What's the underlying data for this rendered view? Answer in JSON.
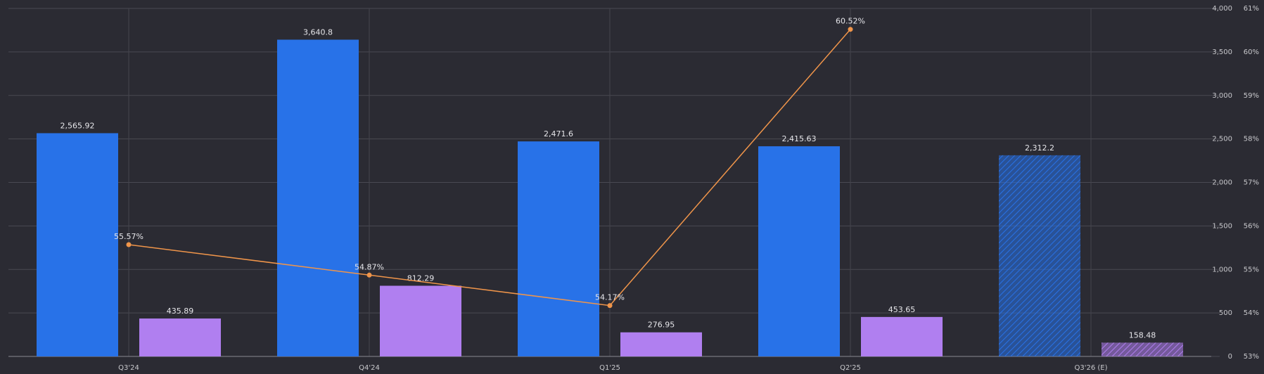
{
  "chart_data": {
    "type": "bar_line",
    "categories": [
      "Q3'24",
      "Q4'24",
      "Q1'25",
      "Q2'25",
      "Q3'26 (E)"
    ],
    "series": [
      {
        "type": "bar",
        "color": "#2872e8",
        "values": [
          2565.92,
          3640.8,
          2471.6,
          2415.63,
          2312.2
        ],
        "value_labels": [
          "2,565.92",
          "3,640.8",
          "2,471.6",
          "2,415.63",
          "2,312.2"
        ],
        "hatched": [
          false,
          false,
          false,
          false,
          true
        ]
      },
      {
        "type": "bar",
        "color": "#b07ff0",
        "values": [
          435.89,
          812.29,
          276.95,
          453.65,
          158.48
        ],
        "hatched": [
          false,
          false,
          false,
          false,
          true
        ]
      },
      {
        "type": "line",
        "axis": "y2",
        "color": "#f0954a",
        "values": [
          55.57,
          54.87,
          54.17,
          60.52,
          null
        ],
        "value_labels": [
          "55.57%",
          "54.87%",
          "54.17%",
          "60.52%",
          null
        ]
      }
    ],
    "ylim": [
      0,
      4000
    ],
    "yticks": [
      0,
      500,
      {
        "value": 1000,
        "label": "1,000"
      },
      {
        "value": 1500,
        "label": "1,500"
      },
      {
        "value": 2000,
        "label": "2,000"
      },
      {
        "value": 2500,
        "label": "2,500"
      },
      {
        "value": 3000,
        "label": "3,000"
      },
      {
        "value": 3500,
        "label": "3,500"
      },
      {
        "value": 4000,
        "label": "4,000"
      }
    ],
    "y2lim": [
      53,
      61
    ],
    "y2ticks": [
      {
        "value": 53,
        "label": "53%"
      },
      {
        "value": 54,
        "label": "54%"
      },
      {
        "value": 55,
        "label": "55%"
      },
      {
        "value": 56,
        "label": "56%"
      },
      {
        "value": 57,
        "label": "57%"
      },
      {
        "value": 58,
        "label": "58%"
      },
      {
        "value": 59,
        "label": "59%"
      },
      {
        "value": 60,
        "label": "60%"
      },
      {
        "value": 61,
        "label": "61%"
      }
    ],
    "grid": true
  }
}
